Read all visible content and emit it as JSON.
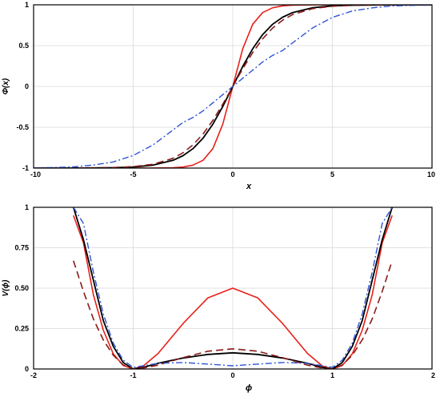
{
  "chart_data": [
    {
      "type": "line",
      "title": "",
      "xlabel": "x",
      "ylabel": "Φ(x)",
      "xlim": [
        -10,
        10
      ],
      "ylim": [
        -1,
        1
      ],
      "xticks": [
        -10,
        -5,
        0,
        5,
        10
      ],
      "xtick_labels": [
        "-10",
        "-5",
        "0",
        "5",
        "10"
      ],
      "yticks": [
        -1,
        -0.5,
        0,
        0.5,
        1
      ],
      "ytick_labels": [
        "-1",
        "-0.5",
        "0",
        "0.5",
        "1"
      ],
      "grid": true,
      "legend": "none",
      "x": [
        -10,
        -9,
        -8,
        -7,
        -6,
        -5,
        -4,
        -3,
        -2.5,
        -2,
        -1.5,
        -1,
        -0.5,
        0,
        0.5,
        1,
        1.5,
        2,
        2.5,
        3,
        4,
        5,
        6,
        7,
        8,
        9,
        10
      ],
      "series": [
        {
          "color": "#e8201a",
          "style": "solid",
          "width": 1.6,
          "values": [
            -1,
            -1,
            -1,
            -1,
            -1,
            -1,
            -0.999,
            -0.995,
            -0.987,
            -0.964,
            -0.905,
            -0.762,
            -0.462,
            0,
            0.462,
            0.762,
            0.905,
            0.964,
            0.987,
            0.995,
            0.999,
            1,
            1,
            1,
            1,
            1,
            1
          ]
        },
        {
          "color": "#000000",
          "style": "solid",
          "width": 1.8,
          "values": [
            -1,
            -1,
            -0.999,
            -0.998,
            -0.995,
            -0.987,
            -0.964,
            -0.905,
            -0.848,
            -0.762,
            -0.635,
            -0.462,
            -0.245,
            0,
            0.245,
            0.462,
            0.635,
            0.762,
            0.848,
            0.905,
            0.964,
            0.987,
            0.995,
            0.998,
            0.999,
            1,
            1
          ]
        },
        {
          "color": "#8b1a1a",
          "style": "dash",
          "width": 1.6,
          "values": [
            -1,
            -0.999,
            -0.999,
            -0.997,
            -0.993,
            -0.982,
            -0.953,
            -0.88,
            -0.812,
            -0.716,
            -0.583,
            -0.416,
            -0.217,
            0,
            0.217,
            0.416,
            0.583,
            0.716,
            0.812,
            0.88,
            0.953,
            0.982,
            0.993,
            0.997,
            0.999,
            0.999,
            1
          ]
        },
        {
          "color": "#2f55d4",
          "style": "dashdot",
          "width": 1.4,
          "values": [
            -0.997,
            -0.993,
            -0.985,
            -0.963,
            -0.925,
            -0.846,
            -0.716,
            -0.533,
            -0.44,
            -0.38,
            -0.3,
            -0.2,
            -0.1,
            0,
            0.1,
            0.2,
            0.3,
            0.38,
            0.44,
            0.533,
            0.716,
            0.846,
            0.925,
            0.963,
            0.985,
            0.993,
            0.997
          ]
        }
      ]
    },
    {
      "type": "line",
      "title": "",
      "xlabel": "ϕ",
      "ylabel": "V(ϕ)",
      "xlim": [
        -2,
        2
      ],
      "ylim": [
        0,
        1
      ],
      "xticks": [
        -2,
        -1,
        0,
        1,
        2
      ],
      "xtick_labels": [
        "-2",
        "-1",
        "0",
        "1",
        "2"
      ],
      "yticks": [
        0,
        0.25,
        0.5,
        0.75,
        1
      ],
      "ytick_labels": [
        "0",
        "0.25",
        "0.50",
        "0.75",
        "1"
      ],
      "grid": true,
      "legend": "none",
      "x": [
        -1.6,
        -1.5,
        -1.4,
        -1.3,
        -1.2,
        -1.1,
        -1.0,
        -0.9,
        -0.75,
        -0.5,
        -0.25,
        0,
        0.25,
        0.5,
        0.75,
        0.9,
        1.0,
        1.1,
        1.2,
        1.3,
        1.4,
        1.5,
        1.6
      ],
      "series": [
        {
          "color": "#e8201a",
          "style": "solid",
          "width": 1.6,
          "values": [
            0.95,
            0.78,
            0.46,
            0.24,
            0.094,
            0.022,
            0,
            0.018,
            0.096,
            0.281,
            0.44,
            0.5,
            0.44,
            0.281,
            0.096,
            0.018,
            0,
            0.022,
            0.094,
            0.24,
            0.46,
            0.78,
            0.95
          ]
        },
        {
          "color": "#000000",
          "style": "solid",
          "width": 1.8,
          "values": [
            1.0,
            0.8,
            0.55,
            0.3,
            0.14,
            0.04,
            0,
            0.01,
            0.035,
            0.068,
            0.09,
            0.1,
            0.09,
            0.068,
            0.035,
            0.01,
            0,
            0.04,
            0.14,
            0.3,
            0.55,
            0.8,
            1.0
          ]
        },
        {
          "color": "#8b1a1a",
          "style": "dash",
          "width": 1.6,
          "values": [
            0.67,
            0.48,
            0.31,
            0.18,
            0.085,
            0.025,
            0,
            0.006,
            0.024,
            0.07,
            0.11,
            0.125,
            0.11,
            0.07,
            0.024,
            0.006,
            0,
            0.025,
            0.085,
            0.18,
            0.31,
            0.48,
            0.67
          ]
        },
        {
          "color": "#2f55d4",
          "style": "dashdot",
          "width": 1.4,
          "values": [
            1.0,
            0.9,
            0.6,
            0.34,
            0.16,
            0.055,
            0.01,
            0.02,
            0.035,
            0.04,
            0.03,
            0.02,
            0.03,
            0.04,
            0.035,
            0.02,
            0.01,
            0.055,
            0.16,
            0.34,
            0.6,
            0.9,
            1.0
          ]
        }
      ]
    }
  ]
}
